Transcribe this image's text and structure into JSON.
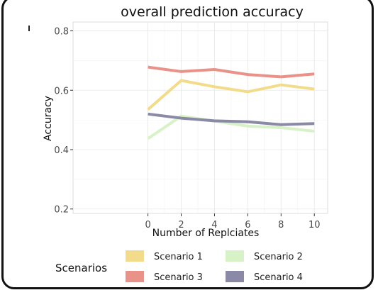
{
  "chart_data": {
    "type": "line",
    "title": "overall prediction accuracy",
    "xlabel": "Number of Replciates",
    "ylabel": "Accuracy",
    "x": [
      0,
      2,
      4,
      6,
      8,
      10
    ],
    "xticks": [
      0,
      2,
      4,
      6,
      8,
      10
    ],
    "yticks": [
      0.2,
      0.4,
      0.6,
      0.8
    ],
    "xlim": [
      -4.5,
      10.8
    ],
    "ylim": [
      0.185,
      0.83
    ],
    "grid": true,
    "legend_title": "Scenarios",
    "legend_position": "bottom",
    "series": [
      {
        "name": "Scenario 1",
        "color": "#f2dc8c",
        "values": [
          0.535,
          0.633,
          0.612,
          0.595,
          0.618,
          0.604
        ]
      },
      {
        "name": "Scenario 2",
        "color": "#d8f2c8",
        "values": [
          0.437,
          0.513,
          0.496,
          0.479,
          0.474,
          0.462
        ]
      },
      {
        "name": "Scenario 3",
        "color": "#e8928a",
        "values": [
          0.678,
          0.663,
          0.67,
          0.653,
          0.645,
          0.655
        ]
      },
      {
        "name": "Scenario 4",
        "color": "#8a8aa6",
        "values": [
          0.52,
          0.506,
          0.497,
          0.494,
          0.484,
          0.488
        ]
      }
    ]
  }
}
